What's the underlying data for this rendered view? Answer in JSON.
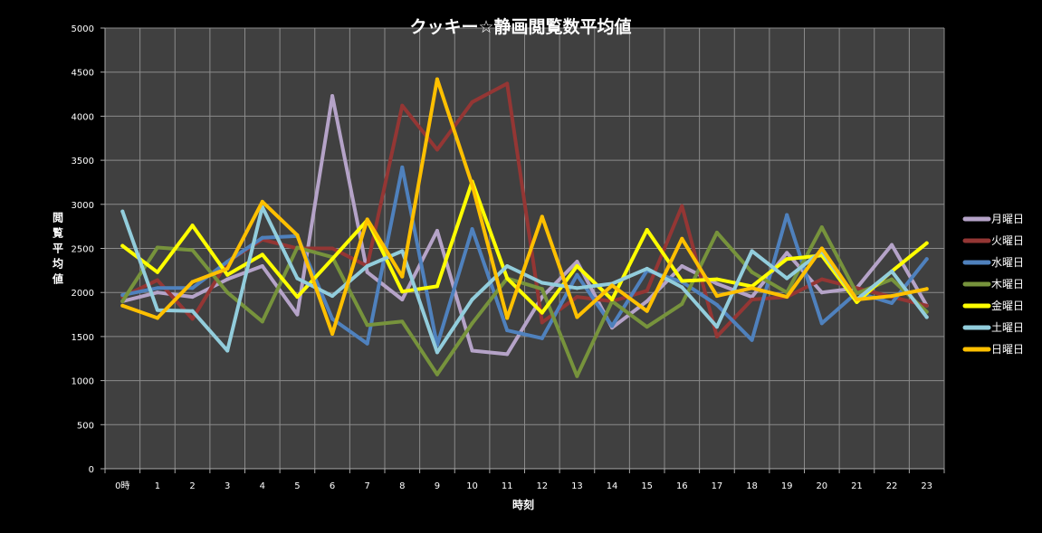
{
  "chart_data": {
    "type": "line",
    "title": "クッキー☆静画閲覧数平均値",
    "xlabel": "時刻",
    "ylabel": "閲覧平均値",
    "categories": [
      "0時",
      "1",
      "2",
      "3",
      "4",
      "5",
      "6",
      "7",
      "8",
      "9",
      "10",
      "11",
      "12",
      "13",
      "14",
      "15",
      "16",
      "17",
      "18",
      "19",
      "20",
      "21",
      "22",
      "23"
    ],
    "ylim": [
      0,
      5000
    ],
    "yticks": [
      0,
      500,
      1000,
      1500,
      2000,
      2500,
      3000,
      3500,
      4000,
      4500,
      5000
    ],
    "grid": true,
    "background": "#404040",
    "legend_position": "right",
    "series": [
      {
        "name": "月曜日",
        "color": "#B5A3C8",
        "values": [
          1900,
          2000,
          1950,
          2150,
          2300,
          1750,
          4230,
          2230,
          1920,
          2700,
          1340,
          1300,
          1950,
          2350,
          1600,
          1900,
          2300,
          2100,
          1950,
          2450,
          2000,
          2050,
          2540,
          1850
        ]
      },
      {
        "name": "火曜日",
        "color": "#943634",
        "values": [
          1950,
          2140,
          1700,
          2350,
          2600,
          2500,
          2500,
          2300,
          4120,
          3620,
          4160,
          4370,
          1660,
          1950,
          1900,
          2020,
          2980,
          1500,
          1920,
          1950,
          2150,
          2050,
          1950,
          1850
        ]
      },
      {
        "name": "水曜日",
        "color": "#4F81BD",
        "values": [
          1970,
          2050,
          2050,
          2350,
          2620,
          2640,
          1700,
          1420,
          3420,
          1400,
          2720,
          1570,
          1480,
          2200,
          1620,
          2250,
          2120,
          1860,
          1460,
          2880,
          1650,
          2000,
          1880,
          2380
        ]
      },
      {
        "name": "木曜日",
        "color": "#77933C",
        "values": [
          1900,
          2510,
          2480,
          2000,
          1670,
          2510,
          2400,
          1630,
          1670,
          1070,
          1650,
          2160,
          2040,
          1050,
          1900,
          1610,
          1870,
          2680,
          2230,
          2000,
          2740,
          1990,
          2150,
          1780
        ]
      },
      {
        "name": "金曜日",
        "color": "#FFFF00",
        "values": [
          2530,
          2230,
          2760,
          2200,
          2430,
          1950,
          2380,
          2820,
          2010,
          2070,
          3260,
          2160,
          1770,
          2300,
          1920,
          2710,
          2130,
          2150,
          2070,
          2380,
          2420,
          1890,
          2240,
          2560
        ]
      },
      {
        "name": "土曜日",
        "color": "#92CDDC",
        "values": [
          2920,
          1800,
          1790,
          1340,
          2970,
          2160,
          1960,
          2300,
          2470,
          1320,
          1920,
          2300,
          2110,
          2050,
          2100,
          2270,
          2060,
          1610,
          2470,
          2160,
          2470,
          1920,
          2240,
          1720
        ]
      },
      {
        "name": "日曜日",
        "color": "#FFC000",
        "values": [
          1850,
          1710,
          2120,
          2270,
          3030,
          2650,
          1530,
          2830,
          2180,
          4420,
          3220,
          1710,
          2860,
          1720,
          2080,
          1790,
          2610,
          1960,
          2050,
          1950,
          2500,
          1920,
          1960,
          2040
        ]
      }
    ]
  }
}
